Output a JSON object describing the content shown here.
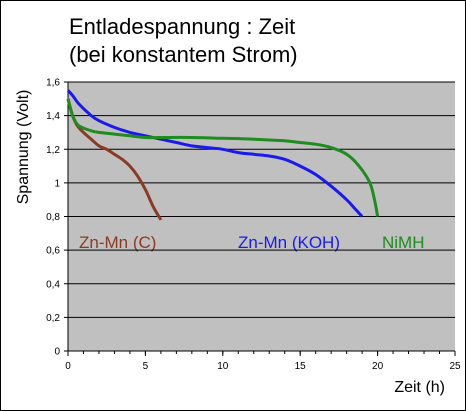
{
  "chart_data": {
    "type": "line",
    "title": "Entladespannung : Zeit",
    "subtitle": "(bei konstantem Strom)",
    "xlabel": "Zeit (h)",
    "ylabel": "Spannung (Volt)",
    "xlim": [
      0,
      25
    ],
    "ylim": [
      0,
      1.6
    ],
    "x_ticks": [
      0,
      5,
      10,
      15,
      20,
      25
    ],
    "x_tick_labels": [
      "0",
      "5",
      "10",
      "15",
      "20",
      "25"
    ],
    "y_ticks": [
      0,
      0.2,
      0.4,
      0.6,
      0.8,
      1,
      1.2,
      1.4,
      1.6
    ],
    "y_tick_labels": [
      "0",
      "0,2",
      "0,4",
      "0,6",
      "0,8",
      "1",
      "1,2",
      "1,4",
      "1,6"
    ],
    "grid": "horizontal",
    "plot_background": "#c0c0c0",
    "series": [
      {
        "name": "Zn-Mn (C)",
        "color": "#8b3a26",
        "x": [
          0,
          0.3,
          0.6,
          1,
          1.5,
          2,
          2.5,
          3,
          3.5,
          4,
          4.5,
          5,
          5.5,
          6
        ],
        "y": [
          1.5,
          1.4,
          1.34,
          1.3,
          1.26,
          1.22,
          1.2,
          1.17,
          1.14,
          1.1,
          1.04,
          0.96,
          0.86,
          0.78
        ]
      },
      {
        "name": "Zn-Mn (KOH)",
        "color": "#1a1aee",
        "x": [
          0,
          0.3,
          0.7,
          1.5,
          2,
          3,
          4,
          5,
          6,
          7,
          8,
          9,
          10,
          11,
          12,
          13,
          14,
          15,
          16,
          17,
          18,
          18.5,
          19
        ],
        "y": [
          1.55,
          1.52,
          1.47,
          1.4,
          1.37,
          1.33,
          1.3,
          1.28,
          1.26,
          1.24,
          1.22,
          1.21,
          1.2,
          1.18,
          1.17,
          1.16,
          1.14,
          1.1,
          1.05,
          0.98,
          0.9,
          0.85,
          0.8
        ]
      },
      {
        "name": "NiMH",
        "color": "#1e8c1e",
        "x": [
          0,
          0.3,
          0.7,
          1.5,
          2,
          3,
          4,
          5,
          6,
          8,
          10,
          12,
          14,
          15,
          16,
          17,
          18,
          18.8,
          19.5,
          19.8,
          20
        ],
        "y": [
          1.5,
          1.4,
          1.34,
          1.31,
          1.3,
          1.29,
          1.28,
          1.27,
          1.27,
          1.27,
          1.265,
          1.26,
          1.25,
          1.24,
          1.23,
          1.21,
          1.17,
          1.1,
          1.0,
          0.9,
          0.8
        ]
      }
    ]
  }
}
